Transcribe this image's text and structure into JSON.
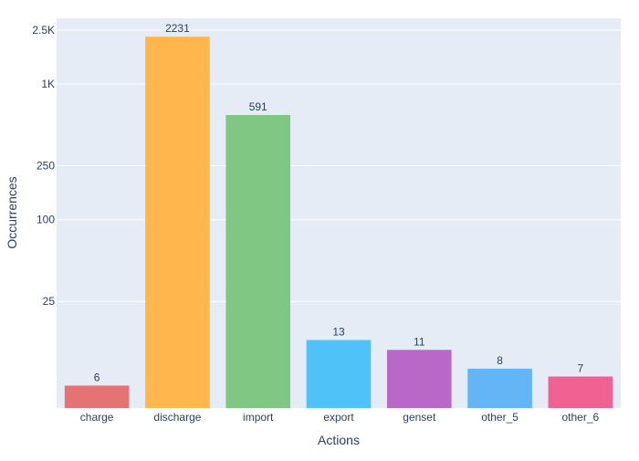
{
  "chart_data": {
    "type": "bar",
    "title": "",
    "xlabel": "Actions",
    "ylabel": "Occurrences",
    "y_scale": "log",
    "ylim": [
      4.1,
      3050
    ],
    "grid": true,
    "legend": "none",
    "categories": [
      "charge",
      "discharge",
      "import",
      "export",
      "genset",
      "other_5",
      "other_6"
    ],
    "values": [
      6,
      2231,
      591,
      13,
      11,
      8,
      7
    ],
    "data_labels": [
      "6",
      "2231",
      "591",
      "13",
      "11",
      "8",
      "7"
    ],
    "colors": [
      "#e57373",
      "#ffb74d",
      "#81c784",
      "#4fc3f7",
      "#ba68c8",
      "#64b5f6",
      "#f06292"
    ],
    "y_ticks": [
      {
        "value": 25,
        "label": "25"
      },
      {
        "value": 100,
        "label": "100"
      },
      {
        "value": 250,
        "label": "250"
      },
      {
        "value": 1000,
        "label": "1K"
      },
      {
        "value": 2500,
        "label": "2.5K"
      }
    ],
    "plot_background": "#e5ecf6",
    "gridline_color": "#ffffff",
    "text_color": "#2a3f5f"
  }
}
